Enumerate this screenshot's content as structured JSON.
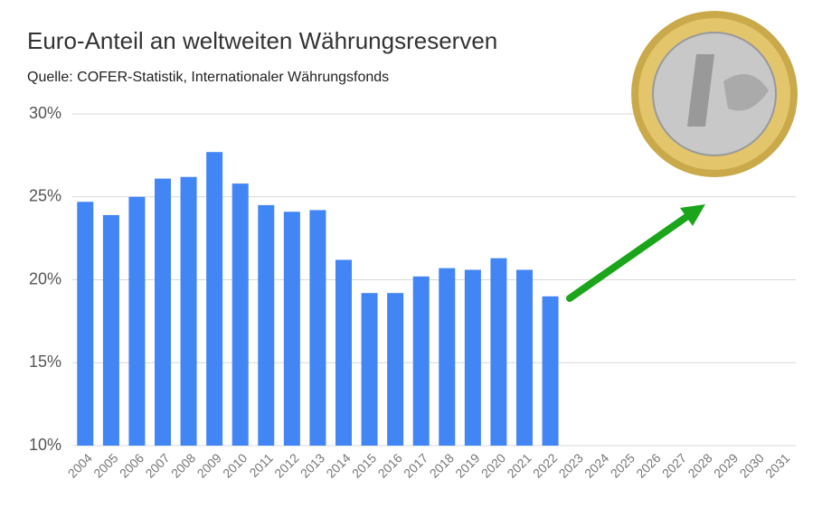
{
  "chart_data": {
    "type": "bar",
    "title": "Euro-Anteil an weltweiten Währungsreserven",
    "subtitle": "Quelle: COFER-Statistik, Internationaler Währungsfonds",
    "categories": [
      "2004",
      "2005",
      "2006",
      "2007",
      "2008",
      "2009",
      "2010",
      "2011",
      "2012",
      "2013",
      "2014",
      "2015",
      "2016",
      "2017",
      "2018",
      "2019",
      "2020",
      "2021",
      "2022",
      "2023",
      "2024",
      "2025",
      "2026",
      "2027",
      "2028",
      "2029",
      "2030",
      "2031"
    ],
    "values": [
      24.7,
      23.9,
      25.0,
      26.1,
      26.2,
      27.7,
      25.8,
      24.5,
      24.1,
      24.2,
      21.2,
      19.2,
      19.2,
      20.2,
      20.7,
      20.6,
      21.3,
      20.6,
      19.0,
      null,
      null,
      null,
      null,
      null,
      null,
      null,
      null,
      null
    ],
    "color": "#4285f4",
    "ylim": [
      10,
      30
    ],
    "yticks": [
      {
        "value": 10,
        "label": "10%"
      },
      {
        "value": 15,
        "label": "15%"
      },
      {
        "value": 20,
        "label": "20%"
      },
      {
        "value": 25,
        "label": "25%"
      },
      {
        "value": 30,
        "label": "30%"
      }
    ],
    "grid": true
  }
}
